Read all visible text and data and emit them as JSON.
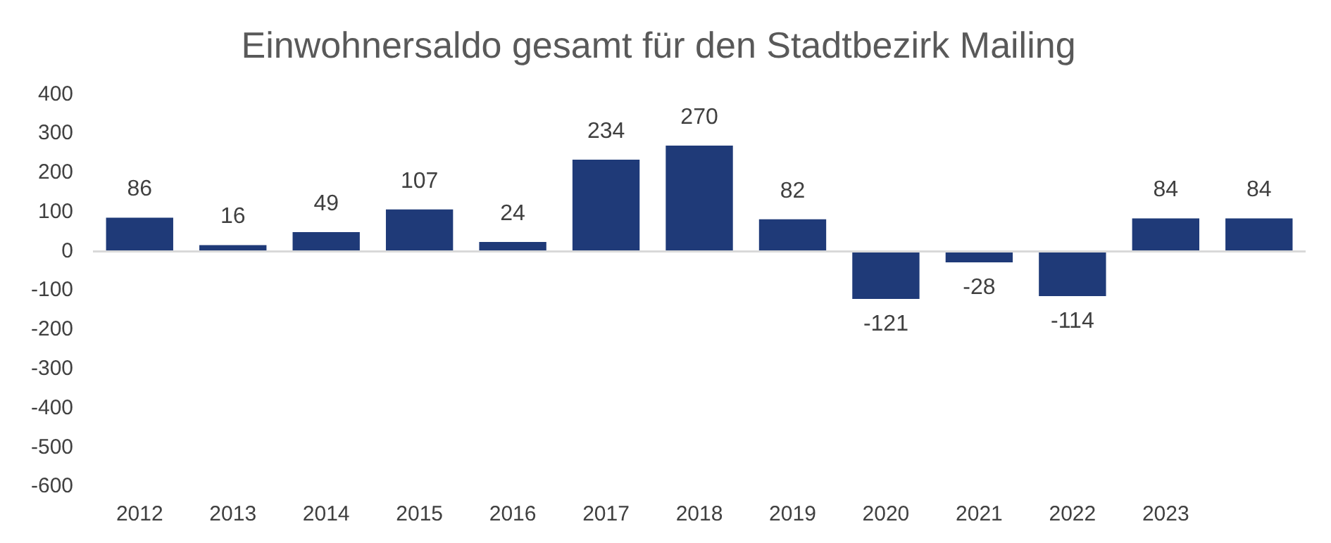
{
  "chart_data": {
    "type": "bar",
    "title": "Einwohnersaldo gesamt für den Stadtbezirk Mailing",
    "categories": [
      "2012",
      "2013",
      "2014",
      "2015",
      "2016",
      "2017",
      "2018",
      "2019",
      "2020",
      "2021",
      "2022",
      "2023",
      null
    ],
    "values": [
      86,
      16,
      49,
      107,
      24,
      234,
      270,
      82,
      -121,
      -28,
      -114,
      84,
      84
    ],
    "color": "#1f3a78",
    "ylim": [
      -600,
      400
    ],
    "yticks": [
      -600,
      -500,
      -400,
      -300,
      -200,
      -100,
      0,
      100,
      200,
      300,
      400
    ],
    "data_labels": true,
    "legend": false
  }
}
